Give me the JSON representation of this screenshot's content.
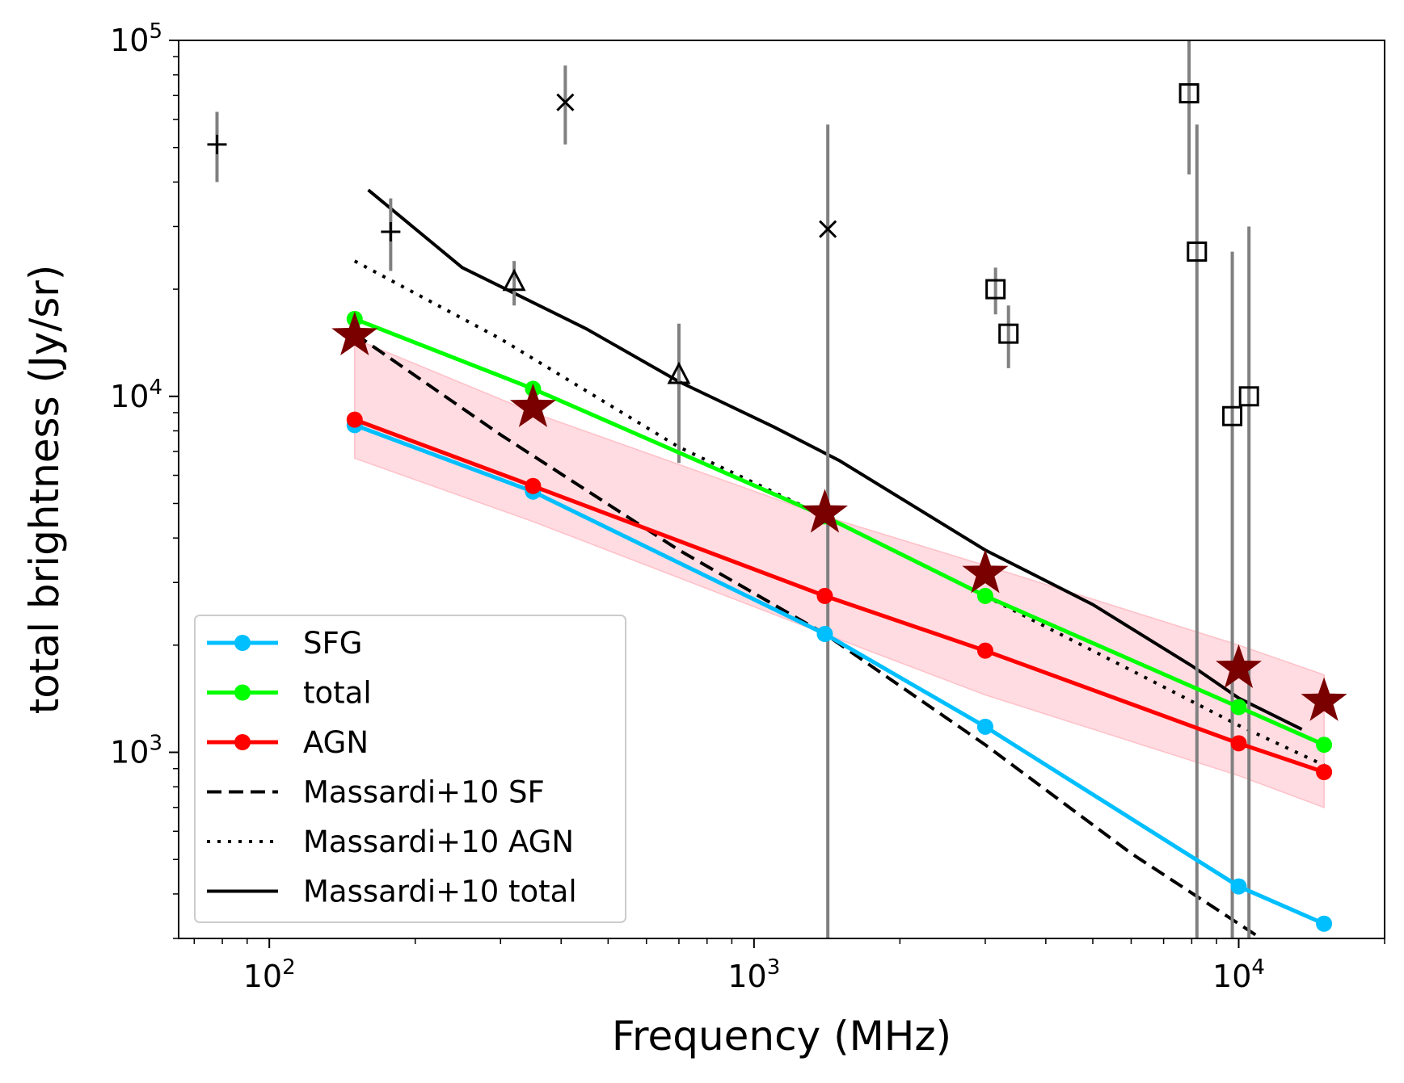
{
  "chart_data": {
    "type": "line",
    "xlabel": "Frequency (MHz)",
    "ylabel": "total brightness (Jy/sr)",
    "xscale": "log",
    "yscale": "log",
    "xlim": [
      65,
      20000
    ],
    "ylim": [
      300,
      100000
    ],
    "x_ticks": [
      {
        "base": "10",
        "exp": "2"
      },
      {
        "base": "10",
        "exp": "3"
      },
      {
        "base": "10",
        "exp": "4"
      }
    ],
    "y_ticks": [
      {
        "base": "10",
        "exp": "3"
      },
      {
        "base": "10",
        "exp": "4"
      },
      {
        "base": "10",
        "exp": "5"
      }
    ],
    "legend_position": "lower-left",
    "series": [
      {
        "name": "SFG",
        "color": "#00bfff",
        "style": "solid-markers",
        "x": [
          150,
          350,
          1400,
          3000,
          10000,
          15000
        ],
        "y": [
          8300,
          5400,
          2150,
          1180,
          420,
          330
        ]
      },
      {
        "name": "total",
        "color": "#00ff00",
        "style": "solid-markers",
        "x": [
          150,
          350,
          1400,
          3000,
          10000,
          15000
        ],
        "y": [
          16500,
          10500,
          4600,
          2750,
          1340,
          1050
        ]
      },
      {
        "name": "AGN",
        "color": "#ff0000",
        "style": "solid-markers",
        "x": [
          150,
          350,
          1400,
          3000,
          10000,
          15000
        ],
        "y": [
          8600,
          5600,
          2750,
          1930,
          1060,
          880
        ]
      },
      {
        "name": "Massardi+10 SF",
        "color": "#000000",
        "style": "dashed",
        "x": [
          150,
          300,
          700,
          1400,
          3000,
          6000,
          10000,
          12500
        ],
        "y": [
          15000,
          7800,
          3700,
          2150,
          1050,
          520,
          330,
          270
        ]
      },
      {
        "name": "Massardi+10 AGN",
        "color": "#000000",
        "style": "dotted",
        "x": [
          150,
          300,
          700,
          1400,
          3000,
          6000,
          10000,
          15000
        ],
        "y": [
          24000,
          14500,
          7200,
          4600,
          2750,
          1700,
          1190,
          920
        ]
      },
      {
        "name": "Massardi+10 total",
        "color": "#000000",
        "style": "solid",
        "x": [
          160,
          250,
          450,
          700,
          1100,
          1500,
          3000,
          5000,
          8000,
          10000,
          13500
        ],
        "y": [
          38000,
          23000,
          15500,
          11000,
          8200,
          6600,
          3700,
          2600,
          1750,
          1420,
          1160
        ]
      }
    ],
    "band": {
      "color": "#ffc0c8",
      "x": [
        150,
        350,
        1400,
        3000,
        10000,
        15000
      ],
      "y_low": [
        6700,
        4450,
        2150,
        1450,
        860,
        700
      ],
      "y_high": [
        14500,
        9000,
        4600,
        3350,
        2000,
        1650
      ]
    },
    "star_points": {
      "color": "#7a0000",
      "x": [
        150,
        350,
        1400,
        3000,
        10000,
        15000
      ],
      "y": [
        14800,
        9300,
        4700,
        3180,
        1720,
        1390
      ]
    },
    "observations": [
      {
        "marker": "plus",
        "x": 78,
        "y": 51000,
        "ylo": 40000,
        "yhi": 63000
      },
      {
        "marker": "plus",
        "x": 178,
        "y": 29000,
        "ylo": 22500,
        "yhi": 36000
      },
      {
        "marker": "triangle",
        "x": 320,
        "y": 21000,
        "ylo": 18000,
        "yhi": 24000
      },
      {
        "marker": "triangle",
        "x": 700,
        "y": 11500,
        "ylo": 6500,
        "yhi": 16000
      },
      {
        "marker": "x",
        "x": 408,
        "y": 67000,
        "ylo": 51000,
        "yhi": 85000
      },
      {
        "marker": "x",
        "x": 1420,
        "y": 29500,
        "ylo": 300,
        "yhi": 58000
      },
      {
        "marker": "square",
        "x": 3150,
        "y": 20000,
        "ylo": 17000,
        "yhi": 23000
      },
      {
        "marker": "square",
        "x": 3350,
        "y": 15000,
        "ylo": 12000,
        "yhi": 18000
      },
      {
        "marker": "square",
        "x": 7900,
        "y": 71000,
        "ylo": 42000,
        "yhi": 100000
      },
      {
        "marker": "square",
        "x": 8200,
        "y": 25500,
        "ylo": 300,
        "yhi": 58000
      },
      {
        "marker": "square",
        "x": 9700,
        "y": 8800,
        "ylo": 300,
        "yhi": 25500
      },
      {
        "marker": "square",
        "x": 10500,
        "y": 10000,
        "ylo": 300,
        "yhi": 30000
      }
    ]
  }
}
